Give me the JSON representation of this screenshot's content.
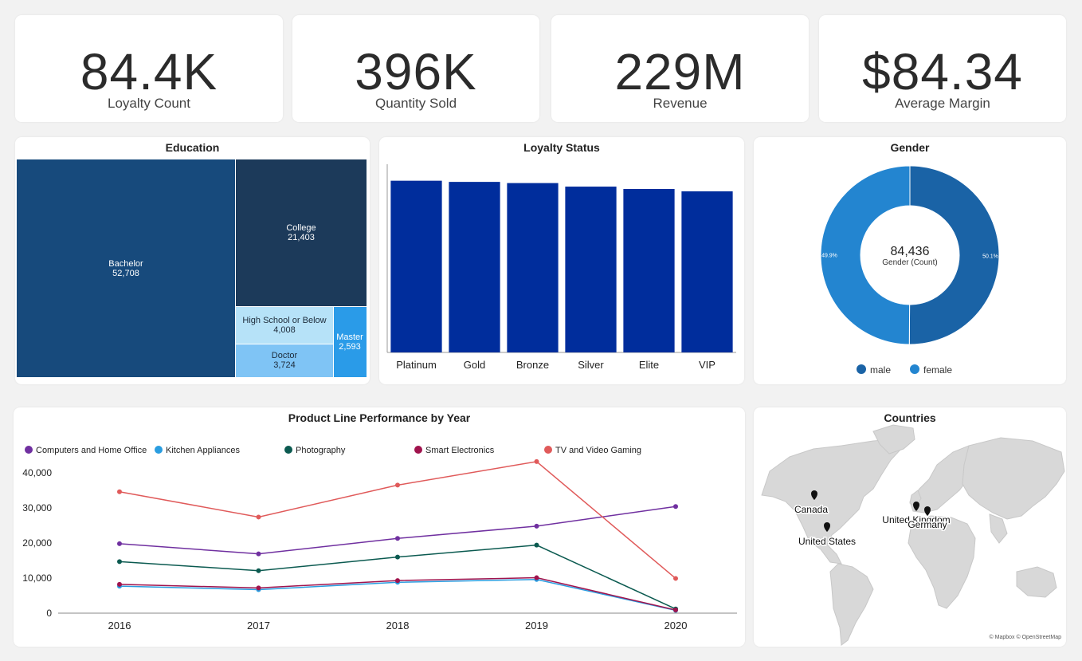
{
  "kpis": [
    {
      "value": "84.4K",
      "label": "Loyalty Count"
    },
    {
      "value": "396K",
      "label": "Quantity Sold"
    },
    {
      "value": "229M",
      "label": "Revenue"
    },
    {
      "value": "$84.34",
      "label": "Average Margin"
    }
  ],
  "colors": {
    "bar": "#002d9c",
    "male": "#1a63a6",
    "female": "#2385d0",
    "treemap": [
      "#174a7c",
      "#1c3a5a",
      "#b6e2f8",
      "#7fc4f5",
      "#2a9be8"
    ],
    "series": [
      "#7030a0",
      "#2a9de0",
      "#0b5a50",
      "#a0134d",
      "#e05a5a"
    ]
  },
  "chart_data": [
    {
      "type": "treemap",
      "title": "Education",
      "items": [
        {
          "label": "Bachelor",
          "value": 52708,
          "display": "52,708"
        },
        {
          "label": "College",
          "value": 21403,
          "display": "21,403"
        },
        {
          "label": "High School or Below",
          "value": 4008,
          "display": "4,008"
        },
        {
          "label": "Doctor",
          "value": 3724,
          "display": "3,724"
        },
        {
          "label": "Master",
          "value": 2593,
          "display": "2,593"
        }
      ]
    },
    {
      "type": "bar",
      "title": "Loyalty Status",
      "categories": [
        "Platinum",
        "Gold",
        "Bronze",
        "Silver",
        "Elite",
        "VIP"
      ],
      "values": [
        14600,
        14500,
        14400,
        14100,
        13900,
        13700
      ],
      "ylim": [
        0,
        16000
      ]
    },
    {
      "type": "pie",
      "title": "Gender",
      "center_value": "84,436",
      "center_label": "Gender (Count)",
      "slices": [
        {
          "name": "male",
          "value": 50.1,
          "label": "50.1%"
        },
        {
          "name": "female",
          "value": 49.9,
          "label": "49.9%"
        }
      ]
    },
    {
      "type": "line",
      "title": "Product Line Performance by Year",
      "x": [
        "2016",
        "2017",
        "2018",
        "2019",
        "2020"
      ],
      "ylim": [
        0,
        45000
      ],
      "yticks": [
        0,
        10000,
        20000,
        30000,
        40000
      ],
      "ytick_labels": [
        "0",
        "10,000",
        "20,000",
        "30,000",
        "40,000"
      ],
      "series": [
        {
          "name": "Computers and Home Office",
          "values": [
            19800,
            16900,
            21300,
            24800,
            30400
          ]
        },
        {
          "name": "Kitchen Appliances",
          "values": [
            7700,
            6700,
            8800,
            9600,
            800
          ]
        },
        {
          "name": "Photography",
          "values": [
            14700,
            12100,
            16000,
            19400,
            1200
          ]
        },
        {
          "name": "Smart Electronics",
          "values": [
            8200,
            7200,
            9300,
            10100,
            900
          ]
        },
        {
          "name": "TV and Video Gaming",
          "values": [
            34600,
            27400,
            36500,
            43200,
            9900
          ]
        }
      ]
    },
    {
      "type": "map",
      "title": "Countries",
      "points": [
        {
          "name": "Canada"
        },
        {
          "name": "United States"
        },
        {
          "name": "United Kingdom"
        },
        {
          "name": "Germany"
        }
      ],
      "attribution": "© Mapbox © OpenStreetMap"
    }
  ]
}
